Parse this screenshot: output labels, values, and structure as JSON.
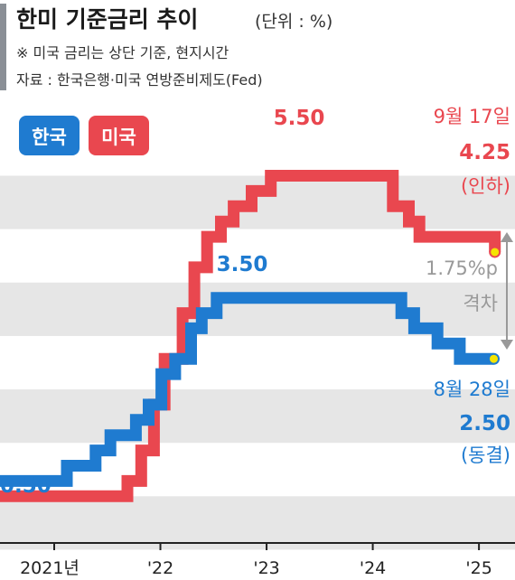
{
  "header": {
    "title": "한미 기준금리 추이",
    "unit": "(단위 : %)",
    "note": "※ 미국 금리는 상단 기준, 현지시간",
    "source": "자료 : 한국은행·미국 연방준비제도(Fed)"
  },
  "legend": {
    "korea": "한국",
    "us": "미국"
  },
  "annotations": {
    "us_peak": "5.50",
    "kr_peak": "3.50",
    "kr_start": "0.50",
    "us_date": "9월 17일",
    "us_value": "4.25",
    "us_note": "(인하)",
    "gap_value": "1.75%p",
    "gap_label": "격차",
    "kr_date": "8월 28일",
    "kr_value": "2.50",
    "kr_note": "(동결)"
  },
  "colors": {
    "korea": "#1f7bd0",
    "us": "#e9474f",
    "grid_band": "#e6e6e6",
    "marker": "#f5e400"
  },
  "chart_data": {
    "type": "line",
    "step": true,
    "title": "한미 기준금리 추이",
    "ylabel": "(단위 : %)",
    "ylim": [
      -0.5,
      6.75
    ],
    "xlim": [
      2021.0,
      2025.85
    ],
    "xticks": [
      {
        "value": 2021.0,
        "label": "2021년"
      },
      {
        "value": 2022.0,
        "label": "'22"
      },
      {
        "value": 2023.0,
        "label": "'23"
      },
      {
        "value": 2024.0,
        "label": "'24"
      },
      {
        "value": 2025.0,
        "label": "'25"
      }
    ],
    "series": [
      {
        "name": "한국",
        "color": "#1f7bd0",
        "points": [
          [
            2021.0,
            0.5
          ],
          [
            2021.63,
            0.75
          ],
          [
            2021.9,
            1.0
          ],
          [
            2022.04,
            1.25
          ],
          [
            2022.28,
            1.5
          ],
          [
            2022.4,
            1.75
          ],
          [
            2022.52,
            2.25
          ],
          [
            2022.65,
            2.5
          ],
          [
            2022.8,
            3.0
          ],
          [
            2022.9,
            3.25
          ],
          [
            2023.04,
            3.5
          ],
          [
            2024.78,
            3.25
          ],
          [
            2024.9,
            3.0
          ],
          [
            2025.12,
            2.75
          ],
          [
            2025.33,
            2.5
          ],
          [
            2025.65,
            2.5
          ]
        ]
      },
      {
        "name": "미국",
        "color": "#e9474f",
        "points": [
          [
            2021.0,
            0.25
          ],
          [
            2022.2,
            0.5
          ],
          [
            2022.33,
            1.0
          ],
          [
            2022.45,
            1.75
          ],
          [
            2022.55,
            2.5
          ],
          [
            2022.72,
            3.25
          ],
          [
            2022.83,
            4.0
          ],
          [
            2022.95,
            4.5
          ],
          [
            2023.08,
            4.75
          ],
          [
            2023.2,
            5.0
          ],
          [
            2023.37,
            5.25
          ],
          [
            2023.55,
            5.5
          ],
          [
            2024.7,
            5.0
          ],
          [
            2024.85,
            4.75
          ],
          [
            2024.95,
            4.5
          ],
          [
            2025.66,
            4.25
          ]
        ]
      }
    ]
  }
}
